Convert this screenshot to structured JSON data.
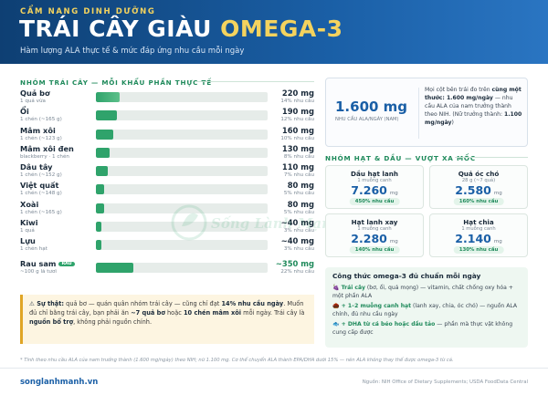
{
  "header": {
    "kicker": "CẨM NANG DINH DƯỠNG",
    "title_main": "TRÁI CÂY GIÀU ",
    "title_highlight": "OMEGA-3",
    "subtitle": "Hàm lượng ALA thực tế & mức đáp ứng nhu cầu mỗi ngày"
  },
  "fruits_section": {
    "heading": "NHÓM TRÁI CÂY — MỖI KHẨU PHẦN THỰC TẾ",
    "items": [
      {
        "name": "Quả bơ",
        "portion": "1 quả vừa",
        "value": "220 mg",
        "pct": "14% nhu cầu",
        "fill": 0.14
      },
      {
        "name": "Ổi",
        "portion": "1 chén (~165 g)",
        "value": "190 mg",
        "pct": "12% nhu cầu",
        "fill": 0.12
      },
      {
        "name": "Mâm xôi",
        "portion": "1 chén (~123 g)",
        "value": "160 mg",
        "pct": "10% nhu cầu",
        "fill": 0.1
      },
      {
        "name": "Mâm xôi đen",
        "portion": "blackberry · 1 chén",
        "value": "130 mg",
        "pct": "8% nhu cầu",
        "fill": 0.08
      },
      {
        "name": "Dâu tây",
        "portion": "1 chén (~152 g)",
        "value": "110 mg",
        "pct": "7% nhu cầu",
        "fill": 0.07
      },
      {
        "name": "Việt quất",
        "portion": "1 chén (~148 g)",
        "value": "80 mg",
        "pct": "5% nhu cầu",
        "fill": 0.05
      },
      {
        "name": "Xoài",
        "portion": "1 chén (~165 g)",
        "value": "80 mg",
        "pct": "5% nhu cầu",
        "fill": 0.05
      },
      {
        "name": "Kiwi",
        "portion": "1 quả",
        "value": "~40 mg",
        "pct": "3% nhu cầu",
        "fill": 0.03
      },
      {
        "name": "Lựu",
        "portion": "1 chén hạt",
        "value": "~40 mg",
        "pct": "3% nhu cầu",
        "fill": 0.03
      },
      {
        "name": "Rau sam",
        "badge": "RAU",
        "portion": "~100 g lá tươi",
        "value": "~350 mg",
        "pct": "22% nhu cầu",
        "fill": 0.22,
        "special": true
      }
    ]
  },
  "note": {
    "lead": "⚠ Sự thật:",
    "text1": " quả bơ — quán quân nhóm trái cây — cũng chỉ đạt ",
    "em1": "14% nhu cầu ngày",
    "text2": ". Muốn đủ chỉ bằng trái cây, bạn phải ăn ",
    "em2": "~7 quả bơ",
    "text3": " hoặc ",
    "em3": "10 chén mâm xôi",
    "text4": " mỗi ngày. Trái cây là ",
    "em4": "nguồn bổ trợ",
    "text5": ", không phải nguồn chính."
  },
  "target": {
    "number": "1.600 mg",
    "label": "NHU CẦU ALA/NGÀY (NAM)",
    "desc1": "Mọi cột bên trái đo trên ",
    "desc_bold1": "cùng một thước: 1.600 mg/ngày",
    "desc2": " — nhu cầu ALA của nam trưởng thành theo NIH. (Nữ trưởng thành: ",
    "desc_bold2": "1.100 mg/ngày",
    "desc3": ")"
  },
  "seeds_section": {
    "heading": "NHÓM HẠT & DẦU — VƯỢT XA MỐC",
    "items": [
      {
        "name": "Dầu hạt lanh",
        "portion": "1 muỗng canh",
        "value": "7.260",
        "unit": "mg",
        "pct": "450% nhu cầu"
      },
      {
        "name": "Quả óc chó",
        "portion": "28 g (~7 quả)",
        "value": "2.580",
        "unit": "mg",
        "pct": "160% nhu cầu"
      },
      {
        "name": "Hạt lanh xay",
        "portion": "1 muỗng canh",
        "value": "2.280",
        "unit": "mg",
        "pct": "140% nhu cầu"
      },
      {
        "name": "Hạt chia",
        "portion": "1 muỗng canh",
        "value": "2.140",
        "unit": "mg",
        "pct": "130% nhu cầu"
      }
    ]
  },
  "formula": {
    "title": "Công thức omega-3 đủ chuẩn mỗi ngày",
    "items": [
      {
        "icon": "🍇",
        "bold": "Trái cây",
        "text": " (bơ, ổi, quả mọng) — vitamin, chất chống oxy hóa + một phần ALA"
      },
      {
        "icon": "🌰",
        "bold": "+ 1–2 muỗng canh hạt",
        "text": " (lanh xay, chia, óc chó) — nguồn ALA chính, đủ nhu cầu ngày"
      },
      {
        "icon": "🐟",
        "bold": "+ DHA từ cá béo hoặc dầu tảo",
        "text": " — phần mà thực vật không cung cấp được"
      }
    ]
  },
  "footnote": "* Tính theo nhu cầu ALA của nam trưởng thành (1.600 mg/ngày) theo NIH; nữ 1.100 mg. Cơ thể chuyển ALA thành EPA/DHA dưới 15% — nên ALA không thay thế được omega-3 từ cá.",
  "footer": {
    "brand": "songlanhmanh.vn",
    "source": "Nguồn: NIH Office of Dietary Supplements; USDA FoodData Central"
  },
  "watermark": "Sống Lành Mạnh",
  "colors": {
    "primary": "#1a5fa6",
    "accent": "#f4d35e",
    "green": "#2fa36b"
  }
}
